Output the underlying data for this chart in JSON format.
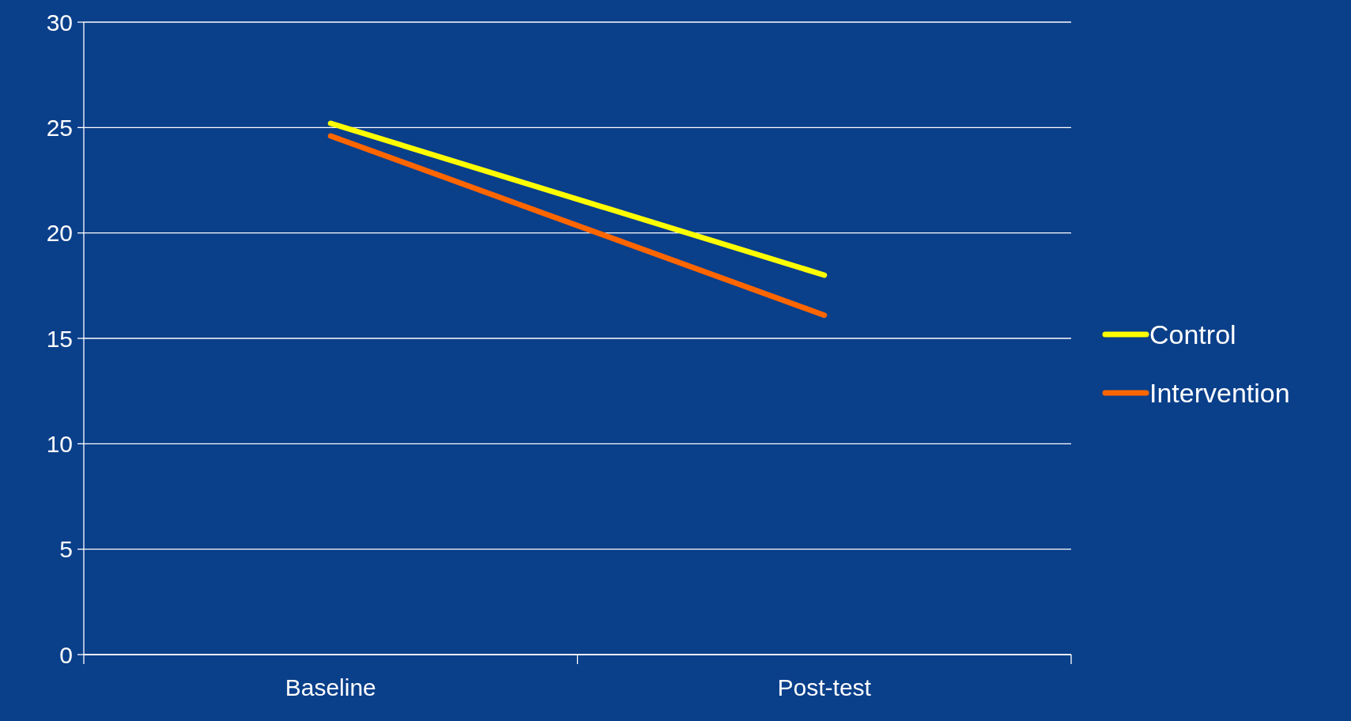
{
  "chart_data": {
    "type": "line",
    "categories": [
      "Baseline",
      "Post-test"
    ],
    "series": [
      {
        "name": "Control",
        "color": "#ffff00",
        "values": [
          25.2,
          18.0
        ]
      },
      {
        "name": "Intervention",
        "color": "#ff6600",
        "values": [
          24.6,
          16.1
        ]
      }
    ],
    "ylim": [
      0,
      30
    ],
    "yticks": [
      0,
      5,
      10,
      15,
      20,
      25,
      30
    ],
    "grid": "y",
    "legend": "right",
    "marker": "none",
    "line_style": "solid"
  }
}
